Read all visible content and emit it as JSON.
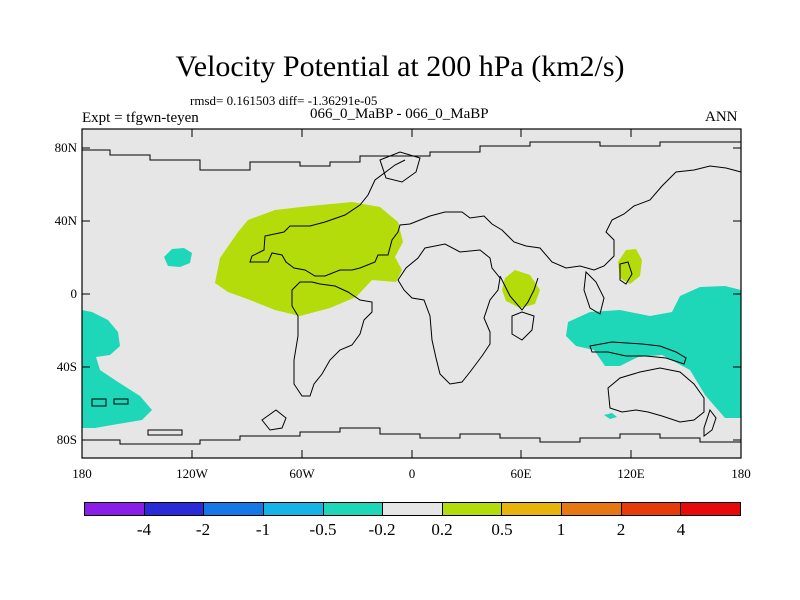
{
  "title": "Velocity Potential at 200 hPa (km2/s)",
  "stats": "rmsd= 0.161503 diff= -1.36291e-05",
  "expt": "Expt = tfgwn-teyen",
  "cases": "066_0_MaBP - 066_0_MaBP",
  "season": "ANN",
  "y_ticks": [
    "80N",
    "40N",
    "0",
    "40S",
    "80S"
  ],
  "x_ticks": [
    "180",
    "120W",
    "60W",
    "0",
    "60E",
    "120E",
    "180"
  ],
  "colorbar": {
    "colors": [
      "#8a1ee6",
      "#2a2ad6",
      "#1677e6",
      "#14b4e6",
      "#1ed7b8",
      "#e6e6e6",
      "#b4dc0a",
      "#e6b40a",
      "#e67814",
      "#e63c0a",
      "#e60a0a"
    ],
    "labels": [
      "-4",
      "-2",
      "-1",
      "-0.5",
      "-0.2",
      "0.2",
      "0.5",
      "1",
      "2",
      "4"
    ]
  },
  "map": {
    "background_color": "#e6e6e6",
    "positive_color": "#b4dc0a",
    "negative_color": "#1ed7b8"
  }
}
